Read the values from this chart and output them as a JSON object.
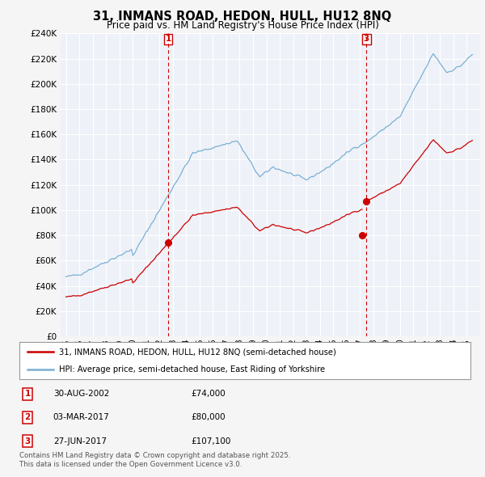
{
  "title": "31, INMANS ROAD, HEDON, HULL, HU12 8NQ",
  "subtitle": "Price paid vs. HM Land Registry's House Price Index (HPI)",
  "legend_line1": "31, INMANS ROAD, HEDON, HULL, HU12 8NQ (semi-detached house)",
  "legend_line2": "HPI: Average price, semi-detached house, East Riding of Yorkshire",
  "sale_color": "#cc0000",
  "hpi_color": "#7bafd4",
  "page_bg": "#f5f5f5",
  "plot_bg": "#eef2f8",
  "grid_color": "#ffffff",
  "transactions": [
    {
      "label": "1",
      "date": "30-AUG-2002",
      "price": 74000,
      "year_dec": 2002.664,
      "show_vline": true
    },
    {
      "label": "2",
      "date": "03-MAR-2017",
      "price": 80000,
      "year_dec": 2017.17,
      "show_vline": false
    },
    {
      "label": "3",
      "date": "27-JUN-2017",
      "price": 107100,
      "year_dec": 2017.49,
      "show_vline": true
    }
  ],
  "footnote": "Contains HM Land Registry data © Crown copyright and database right 2025.\nThis data is licensed under the Open Government Licence v3.0.",
  "ylim_max": 240000,
  "ytick_step": 20000,
  "xstart": 1995,
  "xend": 2025.5
}
